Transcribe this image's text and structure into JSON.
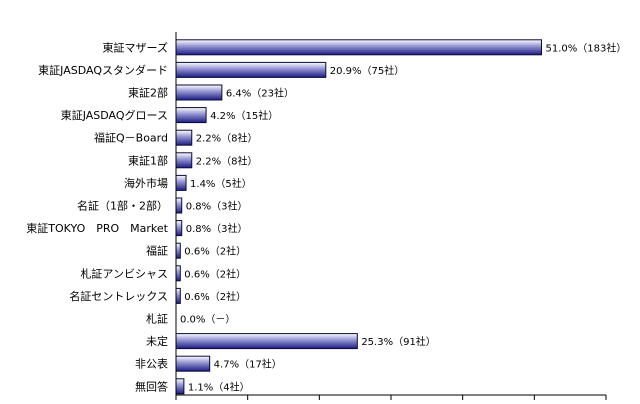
{
  "chart_data": {
    "type": "bar",
    "orientation": "horizontal",
    "categories": [
      "東証マザーズ",
      "東証JASDAQスタンダード",
      "東証2部",
      "東証JASDAQグロース",
      "福証Q－Board",
      "東証1部",
      "海外市場",
      "名証（1部・2部）",
      "東証TOKYO　PRO　Market",
      "福証",
      "札証アンビシャス",
      "名証セントレックス",
      "札証",
      "未定",
      "非公表",
      "無回答"
    ],
    "values": [
      51.0,
      20.9,
      6.4,
      4.2,
      2.2,
      2.2,
      1.4,
      0.8,
      0.8,
      0.6,
      0.6,
      0.6,
      0.0,
      25.3,
      4.7,
      1.1
    ],
    "data_labels": [
      "51.0%（183社）",
      "20.9%（75社）",
      "6.4%（23社）",
      "4.2%（15社）",
      "2.2%（8社）",
      "2.2%（8社）",
      "1.4%（5社）",
      "0.8%（3社）",
      "0.8%（3社）",
      "0.6%（2社）",
      "0.6%（2社）",
      "0.6%（2社）",
      "0.0%（－）",
      "25.3%（91社）",
      "4.7%（17社）",
      "1.1%（4社）"
    ],
    "xlim": [
      0,
      60
    ],
    "x_tick_step": 10,
    "grid": false,
    "legend": "none",
    "colors": {
      "bar_fill_light": "#ffffff",
      "bar_fill_mid": "#9a9ad6",
      "bar_fill_dark": "#1c1c84",
      "bar_stroke": "#0a0a3c",
      "axis": "#000000",
      "text": "#000000"
    }
  }
}
